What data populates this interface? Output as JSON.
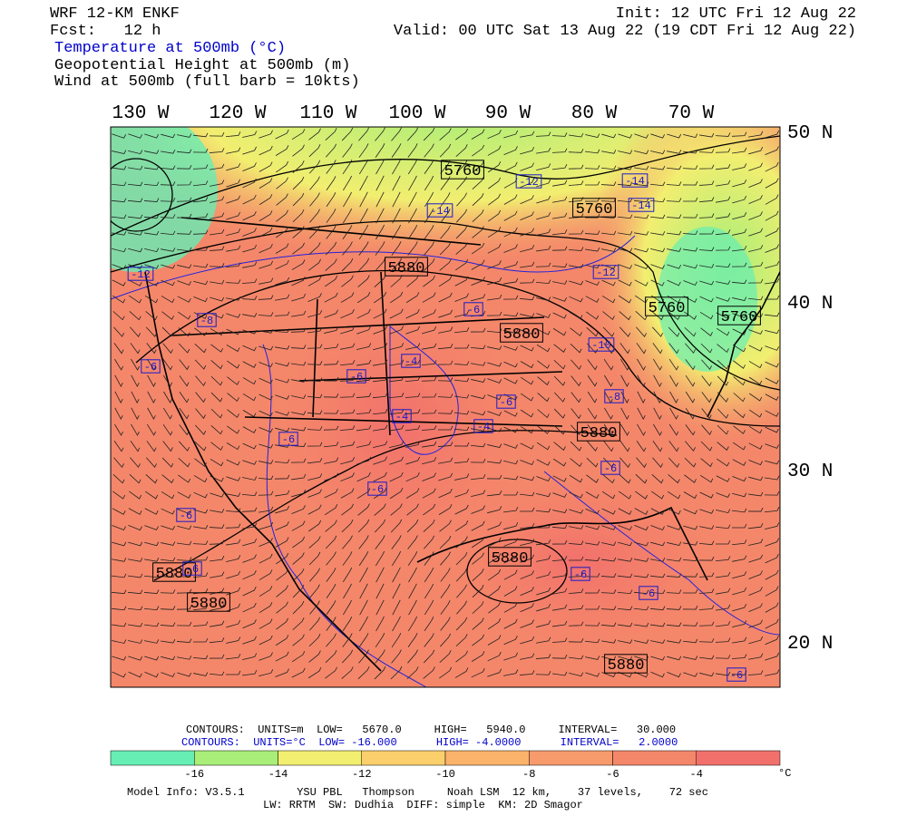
{
  "header": {
    "model": "WRF 12-KM ENKF",
    "forecast": "Fcst:   12 h",
    "init": "Init: 12 UTC Fri 12 Aug 22",
    "valid": "Valid: 00 UTC Sat 13 Aug 22 (19 CDT Fri 12 Aug 22)",
    "fields": [
      "Temperature at 500mb (°C)",
      "Geopotential Height at 500mb (m)",
      "Wind at 500mb (full barb = 10kts)"
    ]
  },
  "map": {
    "lon_labels": [
      "130 W",
      "120 W",
      "110 W",
      "100 W",
      "90 W",
      "80 W",
      "70 W"
    ],
    "lat_labels": [
      "50 N",
      "40 N",
      "30 N",
      "20 N"
    ],
    "height_labels": [
      "5760",
      "5760",
      "5880",
      "5880",
      "5760",
      "5760",
      "5880",
      "5880",
      "5880",
      "5880",
      "5880"
    ],
    "temp_labels": [
      "-12",
      "-14",
      "-14",
      "-14",
      "-12",
      "-12",
      "-6",
      "-8",
      "-10",
      "-4",
      "-6",
      "-6",
      "-8",
      "-6",
      "-4",
      "-4",
      "-6",
      "-6",
      "-6",
      "-6",
      "-6",
      "-6",
      "-6",
      "-6"
    ]
  },
  "contours": {
    "height": "CONTOURS:  UNITS=m  LOW=   5670.0     HIGH=   5940.0     INTERVAL=   30.000",
    "temperature": "CONTOURS:  UNITS=°C  LOW= -16.000      HIGH= -4.0000      INTERVAL=   2.0000"
  },
  "colorbar": {
    "labels": [
      "-16",
      "-14",
      "-12",
      "-10",
      "-8",
      "-6",
      "-4"
    ],
    "unit": "°C",
    "colors": [
      "#66eeb4",
      "#a8ee78",
      "#f2ee70",
      "#fbcf6c",
      "#fbb26a",
      "#f79a6c",
      "#f4876a",
      "#f2706c"
    ]
  },
  "footer": {
    "line1": "Model Info: V3.5.1        YSU PBL   Thompson     Noah LSM  12 km,    37 levels,    72 sec",
    "line2": "LW: RRTM  SW: Dudhia  DIFF: simple  KM: 2D Smagor"
  }
}
